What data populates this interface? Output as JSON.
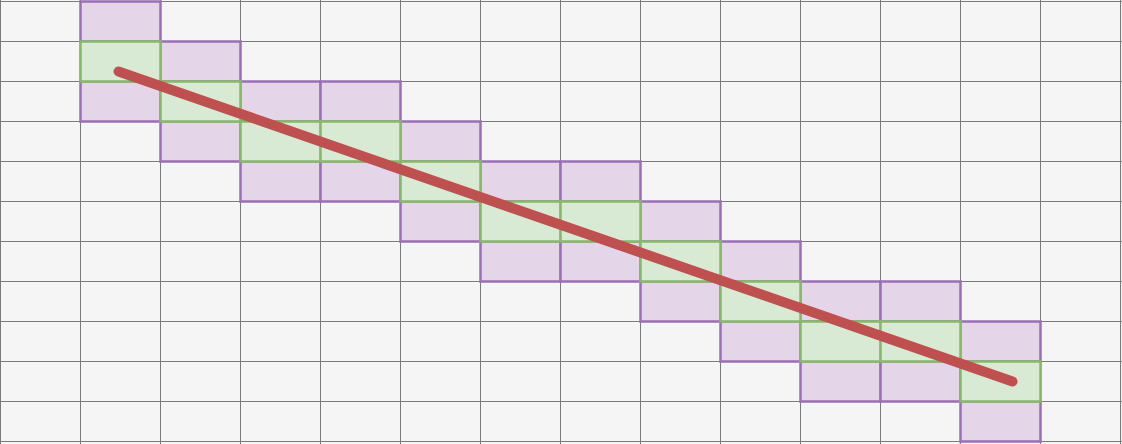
{
  "colors": {
    "background": "#f5f5f5",
    "grid_line": "#7a7a7a",
    "thick_fill": "#e4d6e8",
    "thick_stroke": "#9a6fb5",
    "thin_fill": "#d8ead4",
    "thin_stroke": "#86b86a",
    "line": "#be5050"
  },
  "grid": {
    "columns": 14,
    "rows": 11
  },
  "line_segment": {
    "start": {
      "col": 1.5,
      "row": 1.75
    },
    "end": {
      "col": 12.65,
      "row": 9.5
    }
  },
  "thin_cells": [
    [
      1,
      1
    ],
    [
      2,
      2
    ],
    [
      3,
      3
    ],
    [
      4,
      3
    ],
    [
      5,
      4
    ],
    [
      6,
      5
    ],
    [
      7,
      5
    ],
    [
      8,
      6
    ],
    [
      9,
      7
    ],
    [
      10,
      8
    ],
    [
      11,
      8
    ],
    [
      12,
      9
    ]
  ],
  "thick_cells": [
    [
      1,
      0
    ],
    [
      1,
      1
    ],
    [
      1,
      2
    ],
    [
      2,
      1
    ],
    [
      2,
      2
    ],
    [
      2,
      3
    ],
    [
      3,
      2
    ],
    [
      3,
      3
    ],
    [
      3,
      4
    ],
    [
      4,
      2
    ],
    [
      4,
      3
    ],
    [
      4,
      4
    ],
    [
      5,
      3
    ],
    [
      5,
      4
    ],
    [
      5,
      5
    ],
    [
      6,
      4
    ],
    [
      6,
      5
    ],
    [
      6,
      6
    ],
    [
      7,
      4
    ],
    [
      7,
      5
    ],
    [
      7,
      6
    ],
    [
      8,
      5
    ],
    [
      8,
      6
    ],
    [
      8,
      7
    ],
    [
      9,
      6
    ],
    [
      9,
      7
    ],
    [
      9,
      8
    ],
    [
      10,
      7
    ],
    [
      10,
      8
    ],
    [
      10,
      9
    ],
    [
      11,
      7
    ],
    [
      11,
      8
    ],
    [
      11,
      9
    ],
    [
      12,
      8
    ],
    [
      12,
      9
    ],
    [
      12,
      10
    ]
  ]
}
